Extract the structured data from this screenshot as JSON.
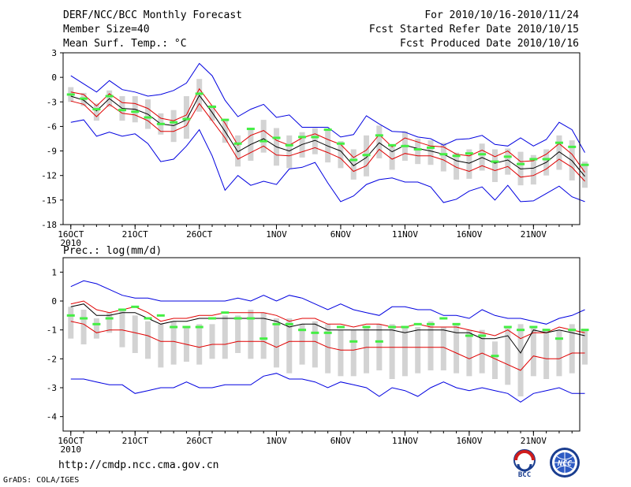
{
  "header": {
    "title": "DERF/NCC/BCC Monthly Forecast",
    "member_size": "Member Size=40",
    "variable": "Mean Surf. Temp.: °C",
    "period": "For 2010/10/16-2010/11/24",
    "started": "Fcst Started Refer Date 2010/10/15",
    "produced": "Fcst Produced Date 2010/10/16"
  },
  "footer": {
    "url": "http://cmdp.ncc.cma.gov.cn",
    "credit": "GrADS: COLA/IGES",
    "logo_bcc": "BCC",
    "logo_ncc": "NCC"
  },
  "colors": {
    "mean": "#000000",
    "spread": "#e00000",
    "range": "#0000e0",
    "box": "#d3d3d3",
    "observed": "#44ee44"
  },
  "chart_data": [
    {
      "type": "line",
      "title": "Mean Surf. Temp.: °C",
      "ylim": [
        -18,
        3
      ],
      "yticks": [
        "3",
        "0",
        "-3",
        "-6",
        "-9",
        "-12",
        "-15",
        "-18"
      ],
      "yticks_values": [
        3,
        0,
        -3,
        -6,
        -9,
        -12,
        -15,
        -18
      ],
      "xticks": [
        {
          "label": "16OCT",
          "day": 0,
          "sub": "2010"
        },
        {
          "label": "21OCT",
          "day": 5
        },
        {
          "label": "26OCT",
          "day": 10
        },
        {
          "label": "1NOV",
          "day": 16
        },
        {
          "label": "6NOV",
          "day": 21
        },
        {
          "label": "11NOV",
          "day": 26
        },
        {
          "label": "16NOV",
          "day": 31
        },
        {
          "label": "21NOV",
          "day": 36
        }
      ],
      "xlim": [
        -0.6,
        39.6
      ],
      "series": [
        {
          "name": "ensemble max",
          "values": [
            0.2,
            -0.8,
            -1.8,
            -0.4,
            -1.5,
            -1.8,
            -2.3,
            -2.1,
            -1.6,
            -0.7,
            1.7,
            0.2,
            -2.8,
            -4.8,
            -3.9,
            -3.3,
            -4.9,
            -4.6,
            -6.1,
            -6.1,
            -6.1,
            -7.3,
            -7.0,
            -4.7,
            -5.7,
            -6.6,
            -6.7,
            -7.3,
            -7.5,
            -8.3,
            -7.6,
            -7.5,
            -7.1,
            -8.2,
            -8.4,
            -7.4,
            -8.4,
            -7.6,
            -5.5,
            -6.4,
            -9.2
          ]
        },
        {
          "name": "mean + spread",
          "values": [
            -1.8,
            -2.1,
            -3.5,
            -2.0,
            -3.1,
            -3.2,
            -3.8,
            -5.0,
            -5.3,
            -4.6,
            -1.4,
            -3.5,
            -5.6,
            -8.3,
            -7.1,
            -6.5,
            -7.7,
            -8.3,
            -7.4,
            -6.9,
            -7.6,
            -8.2,
            -9.8,
            -8.9,
            -7.0,
            -8.5,
            -7.4,
            -7.9,
            -8.4,
            -8.5,
            -9.4,
            -9.6,
            -8.9,
            -9.7,
            -9.0,
            -10.3,
            -10.2,
            -9.4,
            -8.1,
            -9.4,
            -11.6
          ]
        },
        {
          "name": "ensemble mean",
          "values": [
            -2.3,
            -2.8,
            -4.1,
            -2.6,
            -3.8,
            -3.9,
            -4.5,
            -5.7,
            -5.9,
            -5.2,
            -2.2,
            -4.3,
            -6.6,
            -9.1,
            -8.2,
            -7.5,
            -8.5,
            -9.0,
            -8.2,
            -7.7,
            -8.4,
            -9.0,
            -10.8,
            -9.8,
            -8.0,
            -9.1,
            -8.3,
            -8.7,
            -9.0,
            -9.4,
            -10.2,
            -10.5,
            -9.8,
            -10.5,
            -10.1,
            -11.2,
            -11.1,
            -10.4,
            -9.1,
            -10.2,
            -12.1
          ]
        },
        {
          "name": "mean - spread",
          "values": [
            -2.9,
            -3.3,
            -4.8,
            -3.3,
            -4.4,
            -4.6,
            -5.3,
            -6.6,
            -6.6,
            -5.9,
            -3.2,
            -5.3,
            -7.4,
            -10.0,
            -9.2,
            -8.4,
            -9.5,
            -9.6,
            -9.1,
            -8.6,
            -9.2,
            -9.9,
            -11.5,
            -10.8,
            -8.8,
            -10.0,
            -9.3,
            -9.6,
            -9.6,
            -10.1,
            -11.0,
            -11.5,
            -10.8,
            -11.4,
            -10.9,
            -12.2,
            -12.0,
            -11.2,
            -10.0,
            -11.0,
            -12.7
          ]
        },
        {
          "name": "ensemble min",
          "values": [
            -5.5,
            -5.2,
            -7.2,
            -6.7,
            -7.2,
            -6.9,
            -8.1,
            -10.3,
            -10.0,
            -8.4,
            -6.4,
            -9.6,
            -13.8,
            -12.0,
            -13.2,
            -12.7,
            -13.1,
            -11.2,
            -11.0,
            -10.4,
            -12.9,
            -15.2,
            -14.5,
            -13.1,
            -12.5,
            -12.3,
            -12.8,
            -12.8,
            -13.4,
            -15.3,
            -14.9,
            -13.9,
            -13.4,
            -15.0,
            -13.2,
            -15.2,
            -15.1,
            -14.2,
            -13.3,
            -14.6,
            -15.2
          ]
        },
        {
          "name": "box upper",
          "values": [
            -1.2,
            -1.9,
            -3.2,
            -1.6,
            -2.3,
            -2.3,
            -2.7,
            -4.4,
            -4.0,
            -2.3,
            -0.2,
            -3.4,
            -5.1,
            -7.1,
            -6.2,
            -5.2,
            -6.2,
            -7.1,
            -6.7,
            -6.2,
            -6.5,
            -7.8,
            -8.8,
            -7.1,
            -5.9,
            -8.3,
            -6.6,
            -7.5,
            -7.7,
            -8.0,
            -9.2,
            -8.8,
            -8.1,
            -8.8,
            -8.7,
            -9.1,
            -9.5,
            -8.8,
            -7.1,
            -7.7,
            -10.3
          ]
        },
        {
          "name": "box lower",
          "values": [
            -3.0,
            -3.5,
            -5.3,
            -3.6,
            -5.3,
            -5.5,
            -6.3,
            -7.0,
            -7.9,
            -7.5,
            -4.2,
            -5.3,
            -8.0,
            -10.9,
            -10.2,
            -9.2,
            -10.8,
            -11.1,
            -9.8,
            -9.4,
            -10.4,
            -11.1,
            -12.5,
            -12.1,
            -9.9,
            -11.3,
            -10.2,
            -10.6,
            -10.7,
            -11.5,
            -12.5,
            -12.4,
            -11.4,
            -12.8,
            -11.9,
            -13.2,
            -13.1,
            -12.0,
            -11.3,
            -12.6,
            -13.5
          ]
        },
        {
          "name": "observed",
          "values": [
            -2.1,
            -2.6,
            -3.9,
            -2.3,
            -4.0,
            -4.2,
            -4.9,
            -5.7,
            -5.5,
            -5.1,
            -2.0,
            -3.6,
            -5.2,
            -8.1,
            -6.3,
            -7.8,
            -7.4,
            -8.3,
            -7.3,
            -7.3,
            -6.4,
            -8.1,
            -10.1,
            -9.5,
            -7.1,
            -8.3,
            -8.4,
            -8.8,
            -8.6,
            -9.4,
            -9.6,
            -9.3,
            -9.4,
            -10.3,
            -9.7,
            -10.6,
            -10.0,
            -10.0,
            -8.0,
            -8.5,
            -10.7
          ]
        }
      ]
    },
    {
      "type": "line",
      "title": "Prec.: log(mm/d)",
      "ylim": [
        -4.5,
        1.5
      ],
      "yticks": [
        "1",
        "0",
        "-1",
        "-2",
        "-3",
        "-4"
      ],
      "yticks_values": [
        1,
        0,
        -1,
        -2,
        -3,
        -4
      ],
      "xticks": [
        {
          "label": "16OCT",
          "day": 0,
          "sub": "2010"
        },
        {
          "label": "21OCT",
          "day": 5
        },
        {
          "label": "26OCT",
          "day": 10
        },
        {
          "label": "1NOV",
          "day": 16
        },
        {
          "label": "6NOV",
          "day": 21
        },
        {
          "label": "11NOV",
          "day": 26
        },
        {
          "label": "16NOV",
          "day": 31
        },
        {
          "label": "21NOV",
          "day": 36
        }
      ],
      "xlim": [
        -0.6,
        39.6
      ],
      "series": [
        {
          "name": "ensemble max",
          "values": [
            0.5,
            0.7,
            0.6,
            0.4,
            0.2,
            0.1,
            0.1,
            0.0,
            0.0,
            0.0,
            0.0,
            0.0,
            0.0,
            0.1,
            0.0,
            0.2,
            0.0,
            0.2,
            0.1,
            -0.1,
            -0.3,
            -0.1,
            -0.3,
            -0.4,
            -0.5,
            -0.2,
            -0.2,
            -0.3,
            -0.3,
            -0.5,
            -0.5,
            -0.6,
            -0.3,
            -0.5,
            -0.6,
            -0.6,
            -0.7,
            -0.8,
            -0.6,
            -0.5,
            -0.3
          ]
        },
        {
          "name": "mean + spread",
          "values": [
            -0.1,
            0.0,
            -0.3,
            -0.4,
            -0.3,
            -0.2,
            -0.4,
            -0.7,
            -0.6,
            -0.6,
            -0.5,
            -0.5,
            -0.4,
            -0.4,
            -0.4,
            -0.4,
            -0.5,
            -0.7,
            -0.6,
            -0.6,
            -0.8,
            -0.8,
            -0.9,
            -0.8,
            -0.8,
            -0.9,
            -0.9,
            -0.8,
            -0.9,
            -0.9,
            -0.9,
            -1.0,
            -1.1,
            -1.2,
            -1.0,
            -1.3,
            -1.1,
            -1.1,
            -0.9,
            -1.0,
            -1.1
          ]
        },
        {
          "name": "ensemble mean",
          "values": [
            -0.2,
            -0.1,
            -0.5,
            -0.5,
            -0.4,
            -0.4,
            -0.6,
            -0.8,
            -0.7,
            -0.7,
            -0.6,
            -0.6,
            -0.6,
            -0.6,
            -0.6,
            -0.6,
            -0.7,
            -0.9,
            -0.8,
            -0.8,
            -1.0,
            -1.0,
            -1.0,
            -1.0,
            -1.0,
            -1.0,
            -1.1,
            -1.0,
            -1.0,
            -1.0,
            -1.1,
            -1.1,
            -1.3,
            -1.3,
            -1.2,
            -1.8,
            -1.0,
            -1.1,
            -1.0,
            -1.1,
            -1.2
          ]
        },
        {
          "name": "mean - spread",
          "values": [
            -0.7,
            -0.8,
            -1.1,
            -1.0,
            -1.0,
            -1.1,
            -1.2,
            -1.4,
            -1.4,
            -1.5,
            -1.6,
            -1.5,
            -1.5,
            -1.4,
            -1.4,
            -1.4,
            -1.6,
            -1.4,
            -1.4,
            -1.4,
            -1.6,
            -1.7,
            -1.7,
            -1.6,
            -1.6,
            -1.6,
            -1.6,
            -1.6,
            -1.6,
            -1.6,
            -1.8,
            -2.0,
            -1.8,
            -2.0,
            -2.2,
            -2.4,
            -1.9,
            -2.0,
            -2.0,
            -1.8,
            -1.8
          ]
        },
        {
          "name": "ensemble min",
          "values": [
            -2.7,
            -2.7,
            -2.8,
            -2.9,
            -2.9,
            -3.2,
            -3.1,
            -3.0,
            -3.0,
            -2.8,
            -3.0,
            -3.0,
            -2.9,
            -2.9,
            -2.9,
            -2.6,
            -2.5,
            -2.7,
            -2.7,
            -2.8,
            -3.0,
            -2.8,
            -2.9,
            -3.0,
            -3.3,
            -3.0,
            -3.1,
            -3.3,
            -3.0,
            -2.8,
            -3.0,
            -3.1,
            -3.0,
            -3.1,
            -3.2,
            -3.5,
            -3.2,
            -3.1,
            -3.0,
            -3.2,
            -3.2
          ]
        },
        {
          "name": "box upper",
          "values": [
            -0.2,
            -0.3,
            -0.6,
            -0.4,
            -0.3,
            -0.5,
            -0.7,
            -0.8,
            -0.7,
            -0.9,
            -0.8,
            -0.8,
            -0.5,
            -0.5,
            -0.3,
            -0.4,
            -0.6,
            -0.6,
            -0.8,
            -0.7,
            -0.8,
            -1.0,
            -1.0,
            -0.9,
            -0.8,
            -0.8,
            -0.9,
            -0.9,
            -0.7,
            -0.9,
            -0.8,
            -1.0,
            -1.0,
            -1.4,
            -0.9,
            -0.8,
            -0.9,
            -1.0,
            -1.0,
            -0.8,
            -1.0
          ]
        },
        {
          "name": "box lower",
          "values": [
            -1.3,
            -1.5,
            -1.3,
            -1.1,
            -1.6,
            -1.8,
            -2.0,
            -2.3,
            -2.2,
            -2.1,
            -2.2,
            -2.0,
            -2.0,
            -1.8,
            -2.0,
            -2.0,
            -2.3,
            -2.5,
            -2.2,
            -2.3,
            -2.5,
            -2.6,
            -2.6,
            -2.5,
            -2.4,
            -2.7,
            -2.6,
            -2.5,
            -2.4,
            -2.4,
            -2.5,
            -2.6,
            -2.5,
            -2.7,
            -2.9,
            -3.3,
            -2.6,
            -2.7,
            -2.6,
            -2.5,
            -2.2
          ]
        },
        {
          "name": "observed",
          "values": [
            -0.5,
            -0.6,
            -0.8,
            -0.6,
            -0.3,
            -0.2,
            -0.6,
            -0.5,
            -0.9,
            -0.9,
            -0.9,
            -0.6,
            -0.4,
            -0.6,
            -0.6,
            -1.3,
            -0.8,
            -0.8,
            -1.0,
            -1.1,
            -1.1,
            -0.9,
            -1.4,
            -0.9,
            -1.4,
            -0.9,
            -0.9,
            -0.8,
            -0.8,
            -0.6,
            -0.8,
            -1.2,
            -1.2,
            -1.9,
            -0.9,
            -1.0,
            -0.9,
            -1.0,
            -1.3,
            -1.0,
            -1.0
          ]
        }
      ]
    }
  ]
}
